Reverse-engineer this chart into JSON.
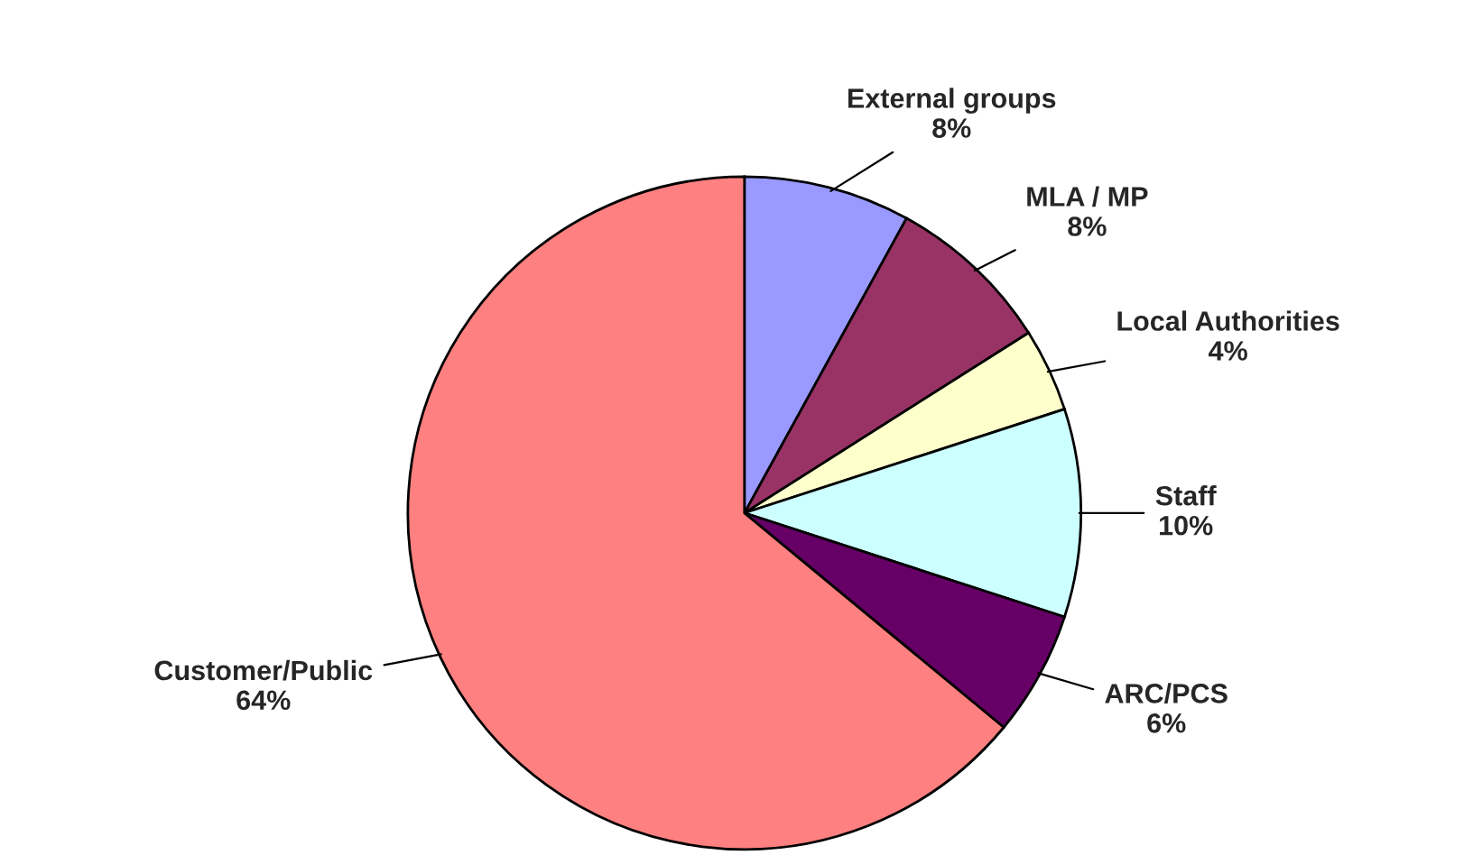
{
  "chart_data": {
    "type": "pie",
    "categories": [
      "External groups",
      "MLA / MP",
      "Local Authorities",
      "Staff",
      "ARC/PCS",
      "Customer/Public"
    ],
    "values": [
      8,
      8,
      4,
      10,
      6,
      64
    ],
    "value_labels": [
      "8%",
      "8%",
      "4%",
      "10%",
      "6%",
      "64%"
    ],
    "colors": [
      "#9999ff",
      "#993366",
      "#ffffcc",
      "#ccffff",
      "#660066",
      "#ff8080"
    ]
  }
}
